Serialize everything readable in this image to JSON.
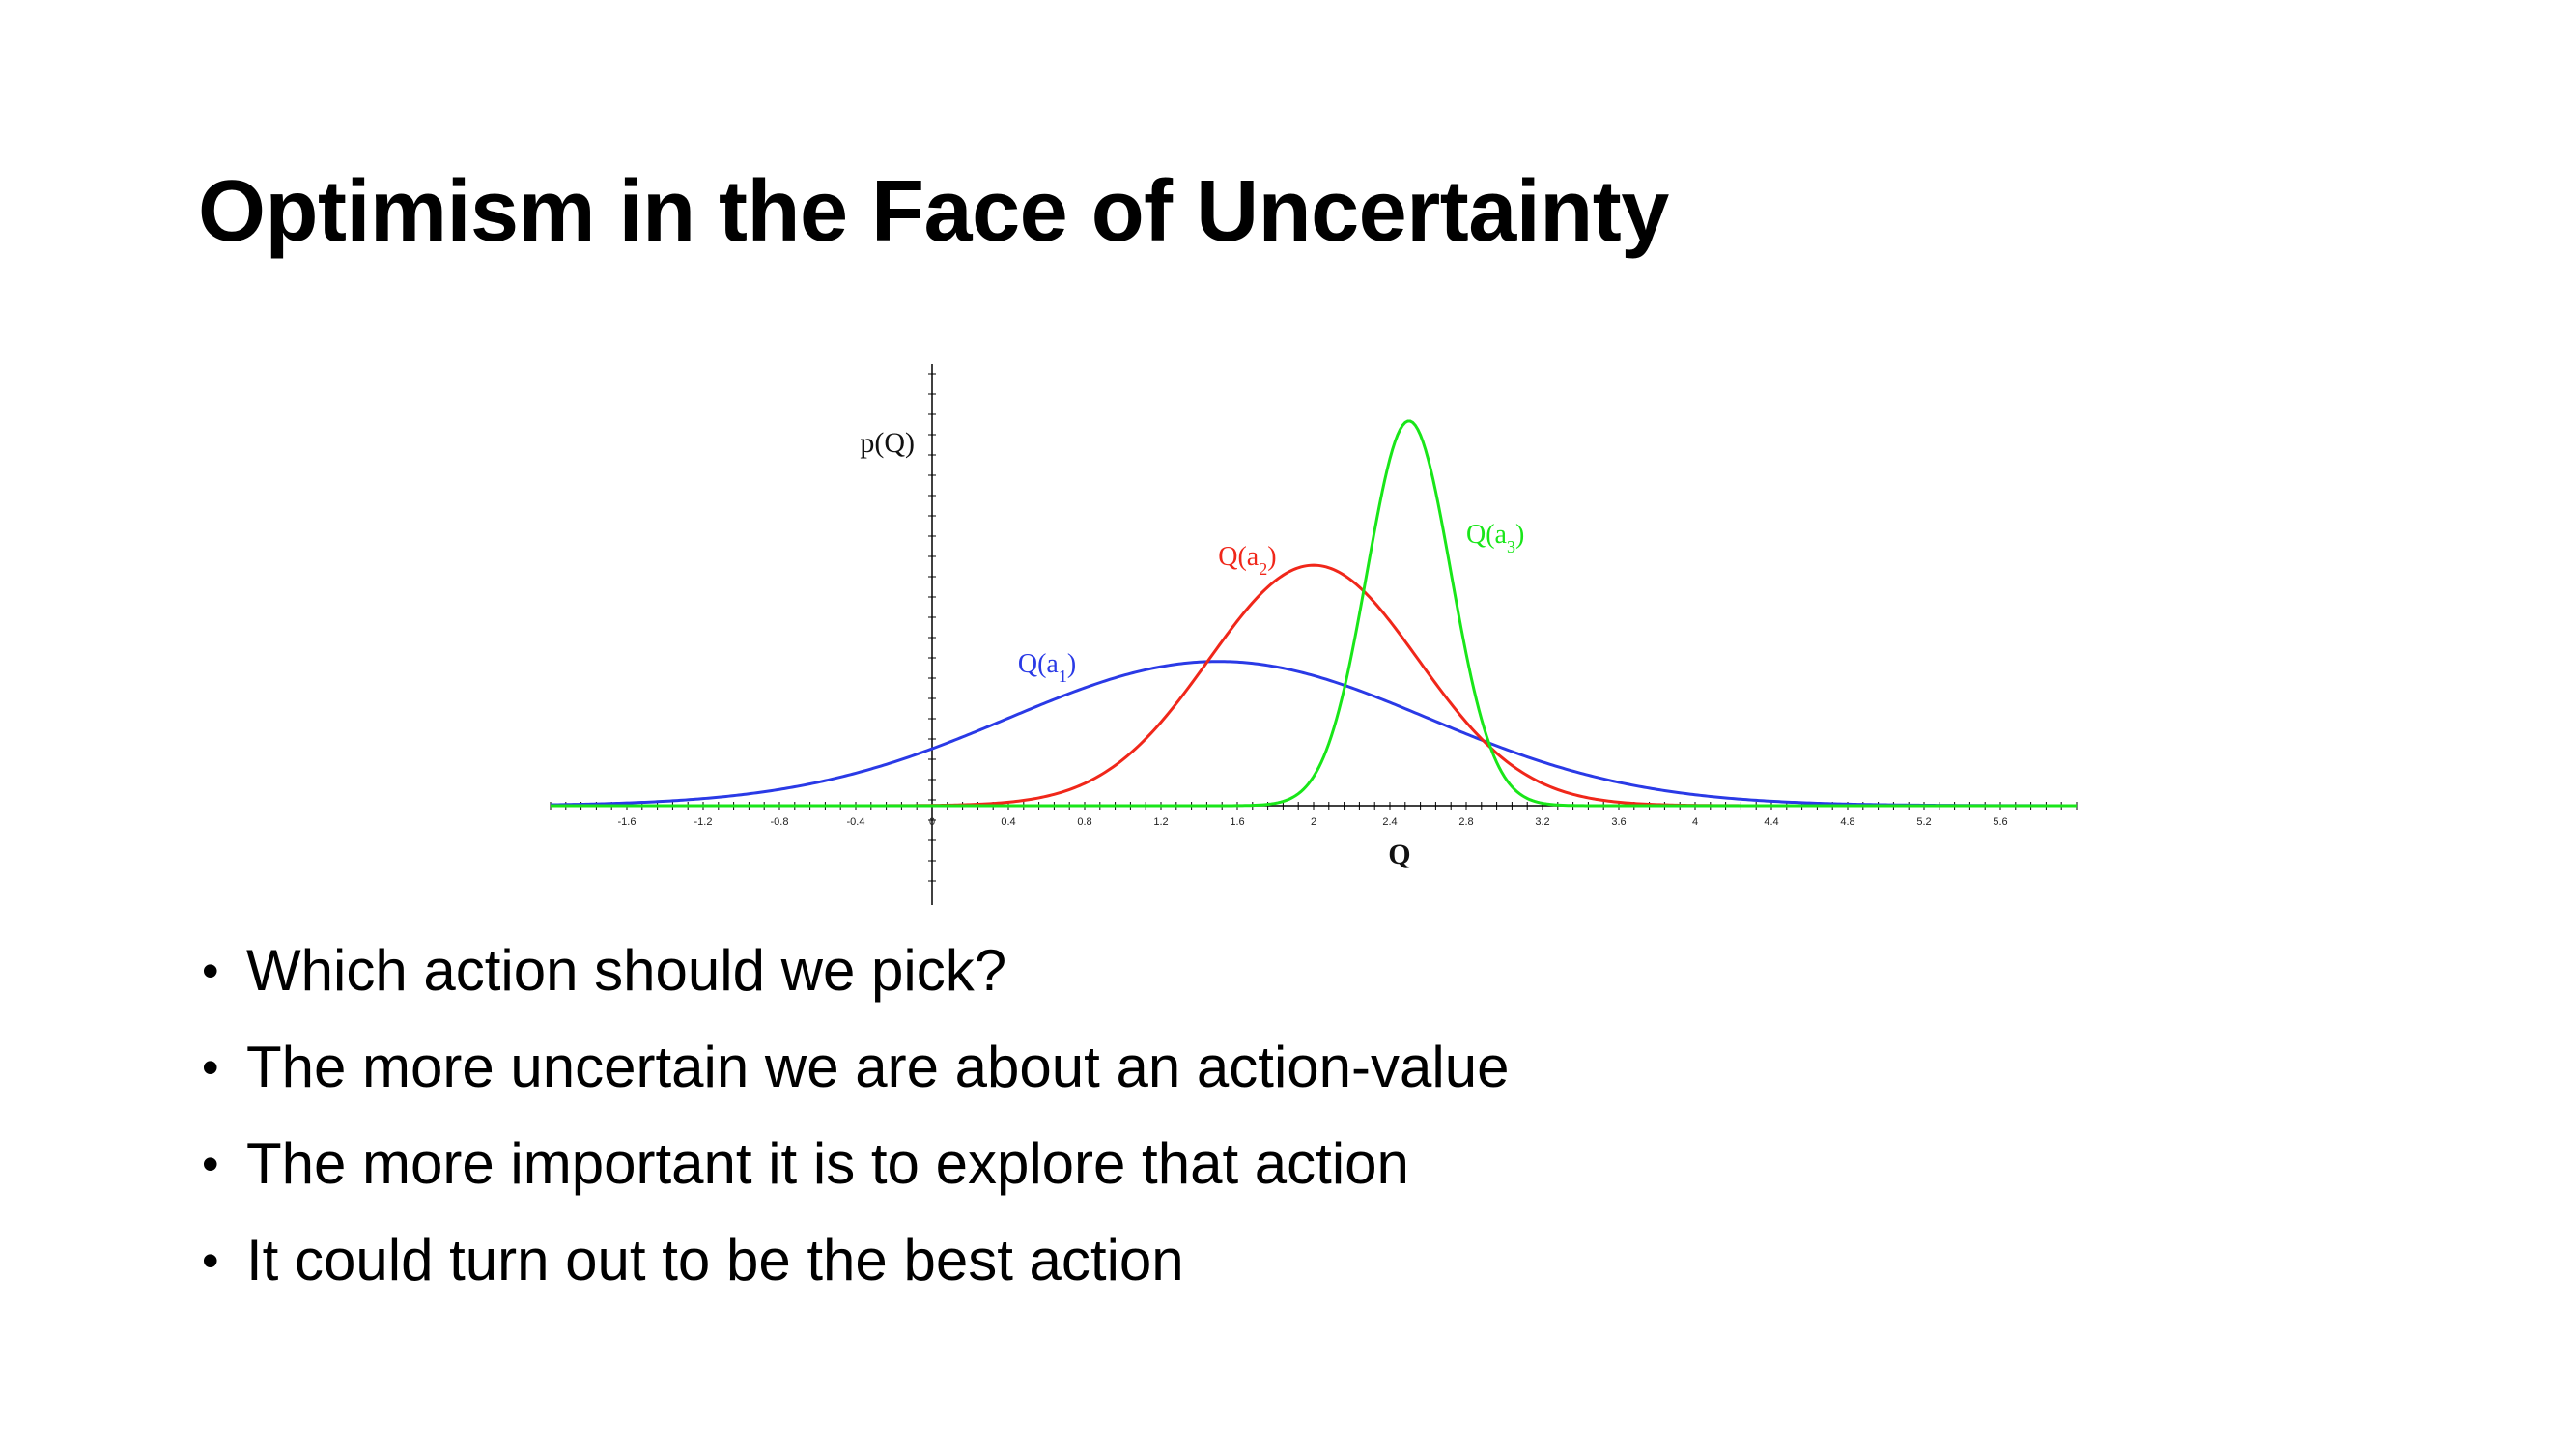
{
  "slide": {
    "title": "Optimism in the Face of Uncertainty",
    "bullets": [
      "Which action should we pick?",
      "The more uncertain we are about an action-value",
      "The more important it is to explore that action",
      "It could turn out to be the best action"
    ]
  },
  "chart_data": {
    "type": "line",
    "xlabel": "Q",
    "ylabel": "p(Q)",
    "xlim": [
      -2.0,
      6.0
    ],
    "ylim": [
      0,
      1.05
    ],
    "x_ticks": [
      -1.6,
      -1.2,
      -0.8,
      -0.4,
      0,
      0.4,
      0.8,
      1.2,
      1.6,
      2,
      2.4,
      2.8,
      3.2,
      3.6,
      4,
      4.4,
      4.8,
      5.2,
      5.6
    ],
    "x_tick_labels": [
      "-1.6",
      "-1.2",
      "-0.8",
      "-0.4",
      "0",
      "0.4",
      "0.8",
      "1.2",
      "1.6",
      "2",
      "2.4",
      "2.8",
      "3.2",
      "3.6",
      "4",
      "4.4",
      "4.8",
      "5.2",
      "5.6"
    ],
    "grid": false,
    "legend": "none",
    "series": [
      {
        "name": "Q(a",
        "subscript": "1",
        "close": ")",
        "color": "#2a3ae6",
        "mean": 1.5,
        "sd": 1.1,
        "peak": 0.39,
        "label_at": [
          0.45,
          0.36
        ]
      },
      {
        "name": "Q(a",
        "subscript": "2",
        "close": ")",
        "color": "#f0271a",
        "mean": 2.0,
        "sd": 0.55,
        "peak": 0.65,
        "label_at": [
          1.5,
          0.65
        ]
      },
      {
        "name": "Q(a",
        "subscript": "3",
        "close": ")",
        "color": "#19e619",
        "mean": 2.5,
        "sd": 0.22,
        "peak": 1.04,
        "label_at": [
          2.8,
          0.71
        ]
      }
    ]
  }
}
